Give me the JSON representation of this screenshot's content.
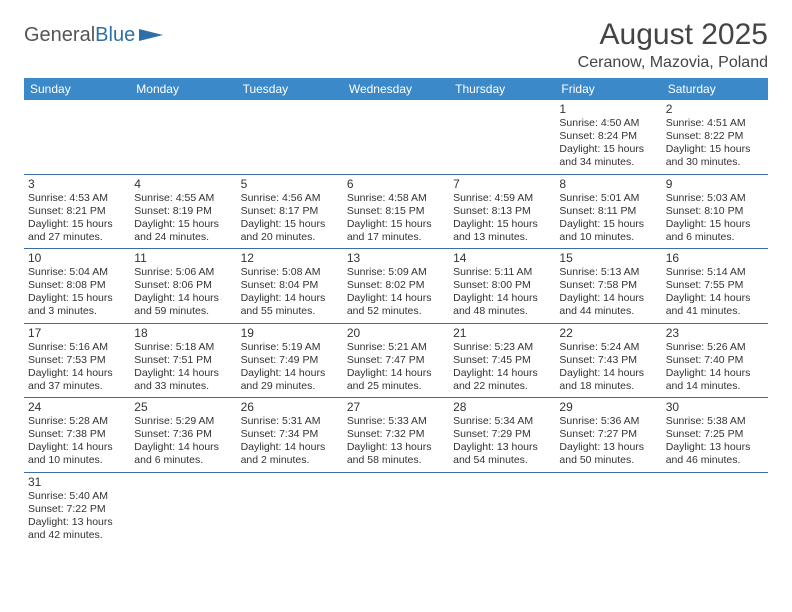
{
  "logo": {
    "text1": "General",
    "text2": "Blue"
  },
  "title": "August 2025",
  "subtitle": "Ceranow, Mazovia, Poland",
  "daynames": [
    "Sunday",
    "Monday",
    "Tuesday",
    "Wednesday",
    "Thursday",
    "Friday",
    "Saturday"
  ],
  "colors": {
    "header_bg": "#3b89c9",
    "header_text": "#ffffff",
    "rule": "#3b6fa0",
    "text": "#333333",
    "title": "#444444"
  },
  "weeks": [
    [
      null,
      null,
      null,
      null,
      null,
      {
        "n": "1",
        "sr": "4:50 AM",
        "ss": "8:24 PM",
        "dl": "15 hours and 34 minutes."
      },
      {
        "n": "2",
        "sr": "4:51 AM",
        "ss": "8:22 PM",
        "dl": "15 hours and 30 minutes."
      }
    ],
    [
      {
        "n": "3",
        "sr": "4:53 AM",
        "ss": "8:21 PM",
        "dl": "15 hours and 27 minutes."
      },
      {
        "n": "4",
        "sr": "4:55 AM",
        "ss": "8:19 PM",
        "dl": "15 hours and 24 minutes."
      },
      {
        "n": "5",
        "sr": "4:56 AM",
        "ss": "8:17 PM",
        "dl": "15 hours and 20 minutes."
      },
      {
        "n": "6",
        "sr": "4:58 AM",
        "ss": "8:15 PM",
        "dl": "15 hours and 17 minutes."
      },
      {
        "n": "7",
        "sr": "4:59 AM",
        "ss": "8:13 PM",
        "dl": "15 hours and 13 minutes."
      },
      {
        "n": "8",
        "sr": "5:01 AM",
        "ss": "8:11 PM",
        "dl": "15 hours and 10 minutes."
      },
      {
        "n": "9",
        "sr": "5:03 AM",
        "ss": "8:10 PM",
        "dl": "15 hours and 6 minutes."
      }
    ],
    [
      {
        "n": "10",
        "sr": "5:04 AM",
        "ss": "8:08 PM",
        "dl": "15 hours and 3 minutes."
      },
      {
        "n": "11",
        "sr": "5:06 AM",
        "ss": "8:06 PM",
        "dl": "14 hours and 59 minutes."
      },
      {
        "n": "12",
        "sr": "5:08 AM",
        "ss": "8:04 PM",
        "dl": "14 hours and 55 minutes."
      },
      {
        "n": "13",
        "sr": "5:09 AM",
        "ss": "8:02 PM",
        "dl": "14 hours and 52 minutes."
      },
      {
        "n": "14",
        "sr": "5:11 AM",
        "ss": "8:00 PM",
        "dl": "14 hours and 48 minutes."
      },
      {
        "n": "15",
        "sr": "5:13 AM",
        "ss": "7:58 PM",
        "dl": "14 hours and 44 minutes."
      },
      {
        "n": "16",
        "sr": "5:14 AM",
        "ss": "7:55 PM",
        "dl": "14 hours and 41 minutes."
      }
    ],
    [
      {
        "n": "17",
        "sr": "5:16 AM",
        "ss": "7:53 PM",
        "dl": "14 hours and 37 minutes."
      },
      {
        "n": "18",
        "sr": "5:18 AM",
        "ss": "7:51 PM",
        "dl": "14 hours and 33 minutes."
      },
      {
        "n": "19",
        "sr": "5:19 AM",
        "ss": "7:49 PM",
        "dl": "14 hours and 29 minutes."
      },
      {
        "n": "20",
        "sr": "5:21 AM",
        "ss": "7:47 PM",
        "dl": "14 hours and 25 minutes."
      },
      {
        "n": "21",
        "sr": "5:23 AM",
        "ss": "7:45 PM",
        "dl": "14 hours and 22 minutes."
      },
      {
        "n": "22",
        "sr": "5:24 AM",
        "ss": "7:43 PM",
        "dl": "14 hours and 18 minutes."
      },
      {
        "n": "23",
        "sr": "5:26 AM",
        "ss": "7:40 PM",
        "dl": "14 hours and 14 minutes."
      }
    ],
    [
      {
        "n": "24",
        "sr": "5:28 AM",
        "ss": "7:38 PM",
        "dl": "14 hours and 10 minutes."
      },
      {
        "n": "25",
        "sr": "5:29 AM",
        "ss": "7:36 PM",
        "dl": "14 hours and 6 minutes."
      },
      {
        "n": "26",
        "sr": "5:31 AM",
        "ss": "7:34 PM",
        "dl": "14 hours and 2 minutes."
      },
      {
        "n": "27",
        "sr": "5:33 AM",
        "ss": "7:32 PM",
        "dl": "13 hours and 58 minutes."
      },
      {
        "n": "28",
        "sr": "5:34 AM",
        "ss": "7:29 PM",
        "dl": "13 hours and 54 minutes."
      },
      {
        "n": "29",
        "sr": "5:36 AM",
        "ss": "7:27 PM",
        "dl": "13 hours and 50 minutes."
      },
      {
        "n": "30",
        "sr": "5:38 AM",
        "ss": "7:25 PM",
        "dl": "13 hours and 46 minutes."
      }
    ],
    [
      {
        "n": "31",
        "sr": "5:40 AM",
        "ss": "7:22 PM",
        "dl": "13 hours and 42 minutes."
      },
      null,
      null,
      null,
      null,
      null,
      null
    ]
  ],
  "labels": {
    "sunrise": "Sunrise: ",
    "sunset": "Sunset: ",
    "daylight": "Daylight: "
  }
}
